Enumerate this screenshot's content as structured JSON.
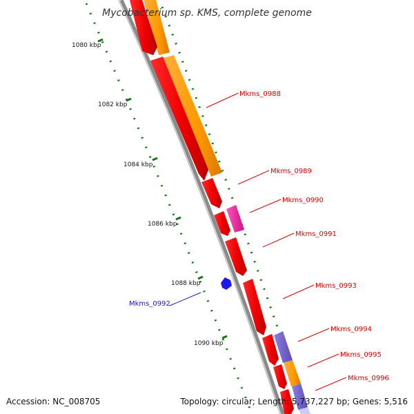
{
  "title": "Mycobacterium sp. KMS, complete genome",
  "accession_label": "Accession: NC_008705",
  "summary_label": "Topology: circular; Length: 5,737,227 bp; Genes: 5,516",
  "ticks": [
    {
      "id": "tick-1080",
      "label": "1080 kbp"
    },
    {
      "id": "tick-1082",
      "label": "1082 kbp"
    },
    {
      "id": "tick-1084",
      "label": "1084 kbp"
    },
    {
      "id": "tick-1086",
      "label": "1086 kbp"
    },
    {
      "id": "tick-1088",
      "label": "1088 kbp"
    },
    {
      "id": "tick-1090",
      "label": "1090 kbp"
    }
  ],
  "genes": [
    {
      "id": "gene-0988",
      "label": "Mkms_0988",
      "color": "#dd0000"
    },
    {
      "id": "gene-0989",
      "label": "Mkms_0989",
      "color": "#dd0000"
    },
    {
      "id": "gene-0990",
      "label": "Mkms_0990",
      "color": "#dd0000"
    },
    {
      "id": "gene-0991",
      "label": "Mkms_0991",
      "color": "#dd0000"
    },
    {
      "id": "gene-0992",
      "label": "Mkms_0992",
      "color": "#1a1acc"
    },
    {
      "id": "gene-0993",
      "label": "Mkms_0993",
      "color": "#dd0000"
    },
    {
      "id": "gene-0994",
      "label": "Mkms_0994",
      "color": "#dd0000"
    },
    {
      "id": "gene-0995",
      "label": "Mkms_0995",
      "color": "#dd0000"
    },
    {
      "id": "gene-0996",
      "label": "Mkms_0996",
      "color": "#dd0000"
    }
  ],
  "colors": {
    "gene_red": "#ff0000",
    "cog_orange": "#ff9900",
    "cog_magenta": "#ff33aa",
    "cog_purple": "#7766cc",
    "backbone_gray": "#888888",
    "tick_green": "#007700",
    "reverse_blue": "#0000ee"
  }
}
